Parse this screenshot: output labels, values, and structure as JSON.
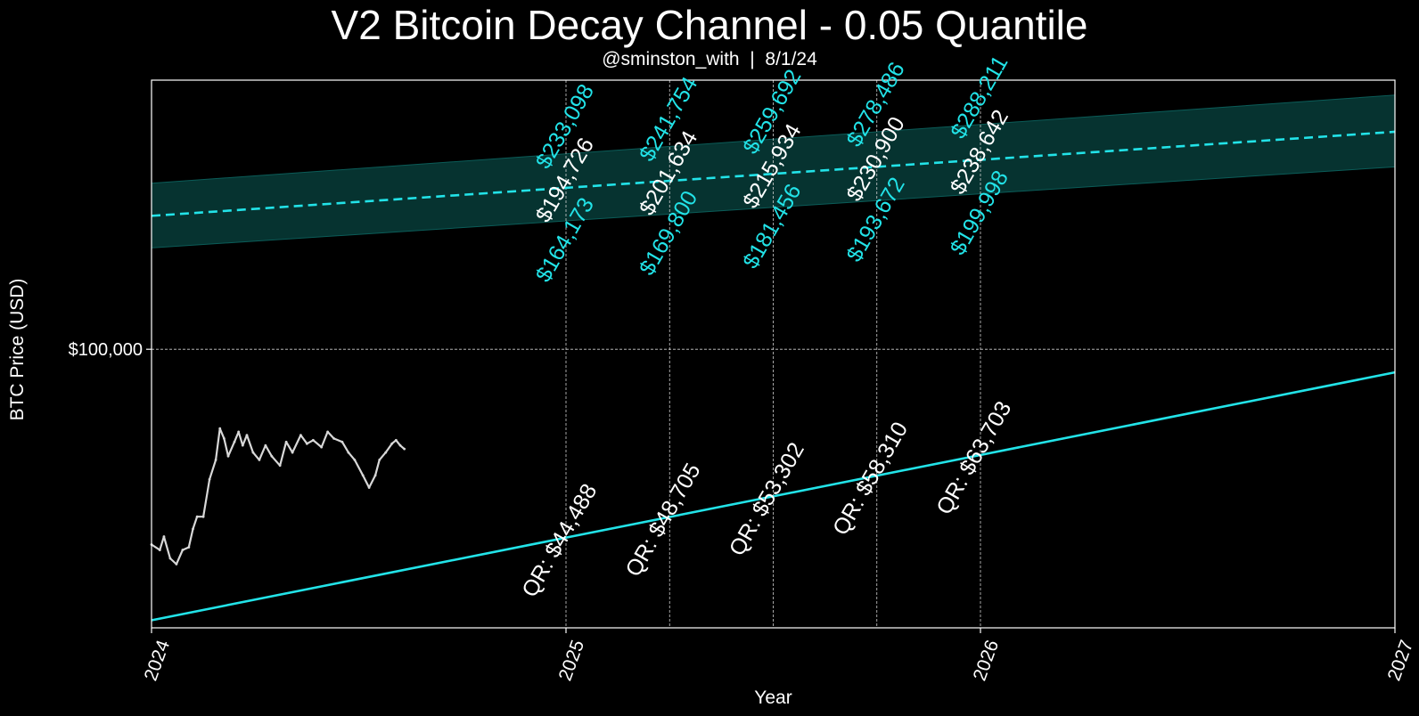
{
  "chart_data": {
    "type": "line",
    "title": "V2 Bitcoin Decay Channel - 0.05 Quantile",
    "subtitle": "@sminston_with  |  8/1/24",
    "xlabel": "Year",
    "ylabel": "BTC Price (USD)",
    "y_scale": "log",
    "xlim": [
      2024.0,
      2027.0
    ],
    "ylim": [
      30000,
      320000
    ],
    "x_ticks": [
      {
        "value": 2024,
        "label": "2024"
      },
      {
        "value": 2025,
        "label": "2025"
      },
      {
        "value": 2026,
        "label": "2026"
      },
      {
        "value": 2027,
        "label": "2027"
      }
    ],
    "y_ticks": [
      {
        "value": 100000,
        "label": "$100,000"
      }
    ],
    "grid": true,
    "colors": {
      "background": "#000000",
      "accent": "#22e3e8",
      "band": "#0b5c58",
      "price": "#d8d8d8",
      "grid": "#cfcfcf",
      "text": "#ffffff"
    },
    "series": [
      {
        "style": "dashed",
        "x": [
          2024.0,
          2027.0
        ],
        "y": [
          178000,
          256000
        ]
      },
      {
        "style": "band",
        "x": [
          2024.0,
          2027.0
        ],
        "lower": [
          155000,
          220000
        ],
        "upper": [
          205000,
          300000
        ]
      },
      {
        "style": "solid",
        "x": [
          2024.0,
          2027.0
        ],
        "y": [
          31000,
          90500
        ]
      },
      {
        "style": "price",
        "x": [
          2024.0,
          2024.02,
          2024.03,
          2024.045,
          2024.06,
          2024.075,
          2024.09,
          2024.1,
          2024.11,
          2024.125,
          2024.14,
          2024.155,
          2024.165,
          2024.175,
          2024.185,
          2024.2,
          2024.21,
          2024.22,
          2024.23,
          2024.245,
          2024.26,
          2024.275,
          2024.29,
          2024.31,
          2024.325,
          2024.34,
          2024.36,
          2024.375,
          2024.39,
          2024.41,
          2024.425,
          2024.44,
          2024.46,
          2024.475,
          2024.49,
          2024.51,
          2024.525,
          2024.54,
          2024.55,
          2024.565,
          2024.58,
          2024.59,
          2024.6,
          2024.61
        ],
        "y": [
          43000,
          42000,
          44500,
          40500,
          39500,
          42000,
          42500,
          46000,
          48500,
          48500,
          57000,
          62000,
          71000,
          68000,
          63000,
          67000,
          70000,
          66000,
          69000,
          64000,
          62000,
          66000,
          63000,
          60500,
          67000,
          64000,
          69000,
          66500,
          67500,
          65500,
          70000,
          68000,
          67000,
          64000,
          62000,
          58000,
          55000,
          58000,
          62000,
          64000,
          66500,
          67500,
          66000,
          65000
        ]
      }
    ],
    "channel_annotations": [
      {
        "x": 2025.0,
        "upper": "$233,098",
        "mid": "$194,726",
        "lower": "$164,173"
      },
      {
        "x": 2025.25,
        "upper": "$241,754",
        "mid": "$201,634",
        "lower": "$169,800"
      },
      {
        "x": 2025.5,
        "upper": "$259,692",
        "mid": "$215,934",
        "lower": "$181,456"
      },
      {
        "x": 2025.75,
        "upper": "$278,486",
        "mid": "$230,900",
        "lower": "$193,672"
      },
      {
        "x": 2026.0,
        "upper": "$288,211",
        "mid": "$238,642",
        "lower": "$199,998"
      }
    ],
    "qr_annotations": [
      {
        "x": 2025.0,
        "text": "QR: $44,488"
      },
      {
        "x": 2025.25,
        "text": "QR: $48,705"
      },
      {
        "x": 2025.5,
        "text": "QR: $53,302"
      },
      {
        "x": 2025.75,
        "text": "QR: $58,310"
      },
      {
        "x": 2026.0,
        "text": "QR: $63,703"
      }
    ]
  }
}
